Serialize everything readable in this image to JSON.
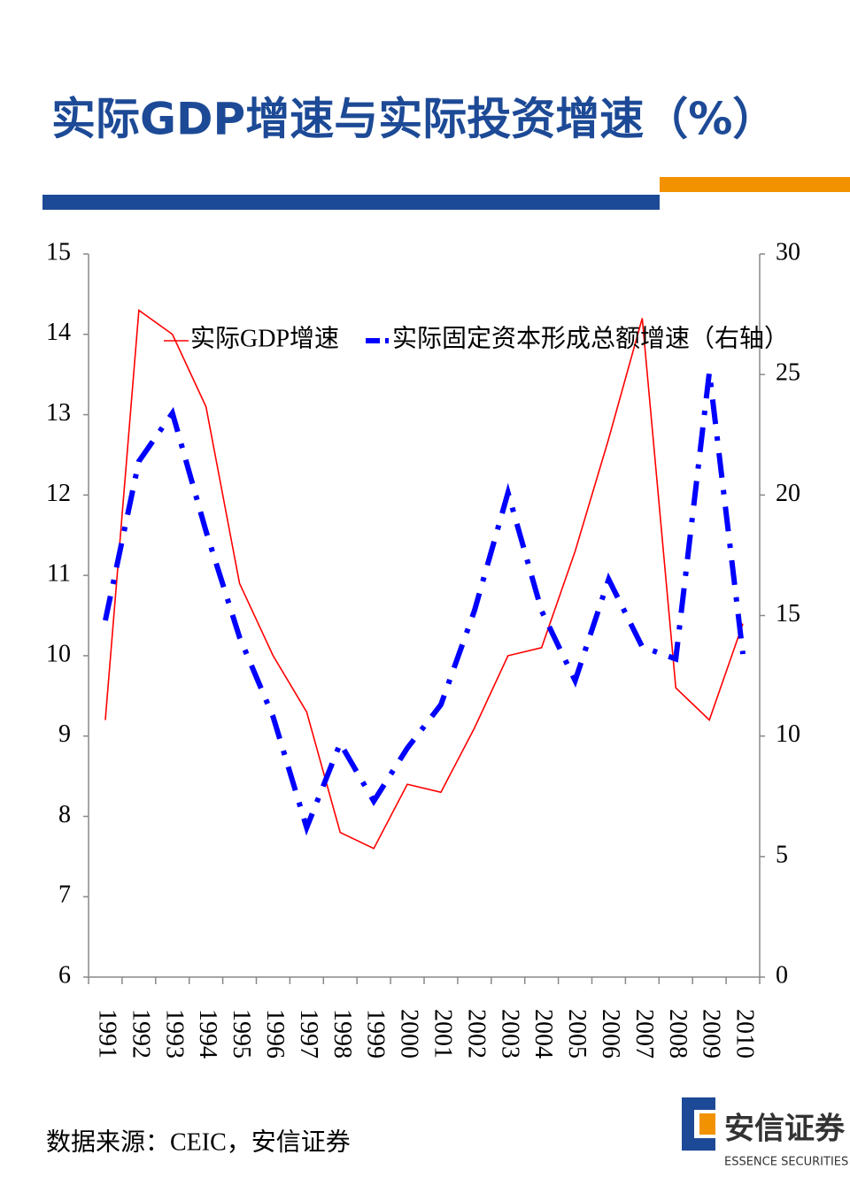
{
  "chart_data": {
    "type": "line",
    "title": "实际GDP增速与实际投资增速（%）",
    "categories": [
      "1991",
      "1992",
      "1993",
      "1994",
      "1995",
      "1996",
      "1997",
      "1998",
      "1999",
      "2000",
      "2001",
      "2002",
      "2003",
      "2004",
      "2005",
      "2006",
      "2007",
      "2008",
      "2009",
      "2010"
    ],
    "series": [
      {
        "name": "实际GDP增速",
        "color": "#ff0000",
        "axis": "y",
        "line_style": "solid",
        "values": [
          9.2,
          14.3,
          14.0,
          13.1,
          10.9,
          10.0,
          9.3,
          7.8,
          7.6,
          8.4,
          8.3,
          9.1,
          10.0,
          10.1,
          11.3,
          12.7,
          14.2,
          9.6,
          9.2,
          10.4
        ]
      },
      {
        "name": "实际固定资本形成总额增速（右轴）",
        "color": "#0000ff",
        "axis": "y2",
        "line_style": "dash-dot",
        "values": [
          14.8,
          21.4,
          23.4,
          18.5,
          14.1,
          10.8,
          6.2,
          9.7,
          7.3,
          9.5,
          11.3,
          15.2,
          20.1,
          15.2,
          12.3,
          16.5,
          13.7,
          13.2,
          25.1,
          13.4
        ]
      }
    ],
    "ylim": [
      6,
      15
    ],
    "yticks": [
      6,
      7,
      8,
      9,
      10,
      11,
      12,
      13,
      14,
      15
    ],
    "y2lim": [
      0,
      30
    ],
    "y2ticks": [
      0,
      5,
      10,
      15,
      20,
      25,
      30
    ],
    "grid": false
  },
  "source": "数据来源：CEIC，安信证券",
  "logo": {
    "name": "安信证券",
    "subtitle": "ESSENCE SECURITIES"
  }
}
